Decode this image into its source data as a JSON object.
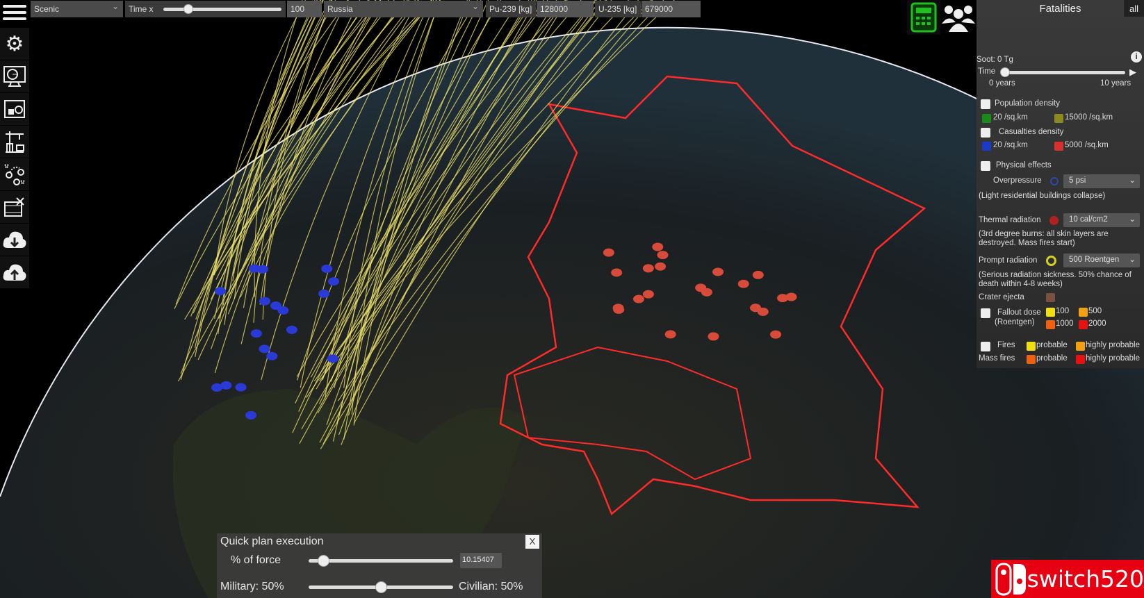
{
  "topbar": {
    "view_mode": "Scenic",
    "time_label": "Time x",
    "time_value": "100",
    "time_slider_fraction": 0.22,
    "country": "Russia",
    "pu_label": "Pu-239 [kg]",
    "pu_value": "128000",
    "u_label": "U-235 [kg]",
    "u_value": "679000"
  },
  "toolbar": {
    "icons": [
      "settings-icon",
      "dashboard-icon",
      "planning-icon",
      "construction-icon",
      "strategy-icon",
      "video-edit-icon",
      "download-icon",
      "upload-icon"
    ]
  },
  "right_panel": {
    "title": "Fatalities",
    "all_button": "all",
    "soot": "Soot: 0 Tg",
    "time_label": "Time",
    "time_start": "0 years",
    "time_end": "10 years",
    "time_slider_fraction": 0,
    "population_density": "Population density",
    "pop_low": "20 /sq.km",
    "pop_high": "15000 /sq.km",
    "casualties_density": "Casualties density",
    "cas_low": "20 /sq.km",
    "cas_high": "5000 /sq.km",
    "physical_effects": "Physical effects",
    "overpressure": "Overpressure",
    "overpressure_value": "5 psi",
    "overpressure_desc": "(Light residential buildings collapse)",
    "thermal": "Thermal radiation",
    "thermal_value": "10 cal/cm2",
    "thermal_desc": "(3rd degree burns: all skin layers are destroyed. Mass fires start)",
    "prompt": "Prompt radiation",
    "prompt_value": "500 Roentgen",
    "prompt_desc": "(Serious radiation sickness. 50% chance of death within 4-8 weeks)",
    "crater": "Crater ejecta",
    "fallout": "Fallout dose",
    "fallout_unit": "(Roentgen)",
    "f100": "100",
    "f500": "500",
    "f1000": "1000",
    "f2000": "2000",
    "fires": "Fires",
    "mass_fires": "Mass fires",
    "probable": "probable",
    "highly_probable": "highly probable"
  },
  "colors": {
    "pop_low": "#1a8a1a",
    "pop_high": "#8a8a20",
    "cas_low": "#1a3acc",
    "cas_high": "#d83030",
    "overpressure": "#2a4aaa",
    "thermal": "#b02020",
    "prompt": "#d8d020",
    "crater": "#7a5040",
    "yellow": "#f0e010",
    "orange": "#f0a010",
    "dark_orange": "#f06010",
    "red": "#e81010",
    "border": "#ff2a2a",
    "trajectory": "#f2e66a",
    "calc": "#1fc01f"
  },
  "quick_plan": {
    "title": "Quick plan execution",
    "close": "X",
    "force_label": "% of force",
    "force_value": "10.15407",
    "force_fraction": 0.1,
    "military": "Military: 50%",
    "civilian": "Civilian: 50%",
    "mix_fraction": 0.5
  },
  "watermark": "switch520"
}
